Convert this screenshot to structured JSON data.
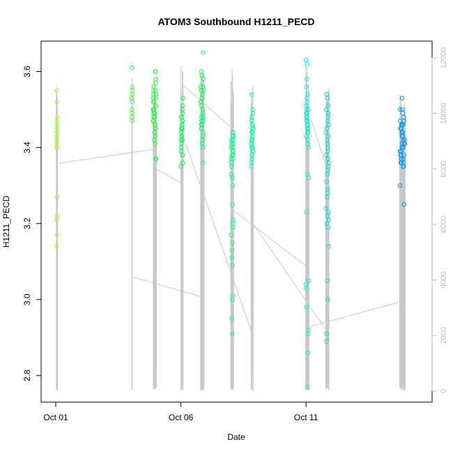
{
  "chart_data": {
    "type": "scatter",
    "title": "ATOM3 Southbound H1211_PECD",
    "xlabel": "Date",
    "ylabel": "H1211_PECD",
    "x_range_days": [
      0.0,
      14.2
    ],
    "x_ticks": [
      {
        "label": "Oct 01",
        "day": 0.0
      },
      {
        "label": "Oct 06",
        "day": 5.0
      },
      {
        "label": "Oct 11",
        "day": 10.0
      }
    ],
    "ylim": [
      2.73,
      3.68
    ],
    "y_ticks": [
      2.8,
      3.0,
      3.2,
      3.4,
      3.6
    ],
    "y_tick_labels": [
      "2.8",
      "3.0",
      "3.2",
      "3.4",
      "3.6"
    ],
    "y2lim": [
      -400,
      12600
    ],
    "y2_ticks": [
      0,
      2000,
      4000,
      6000,
      8000,
      10000,
      12000
    ],
    "y2_tick_labels": [
      "0",
      "2000",
      "4000",
      "6000",
      "8000",
      "10000",
      "12000"
    ],
    "grid": false,
    "legend": "none",
    "point_color_gradient": [
      "#a8ff20",
      "#00ff40",
      "#00ffd0",
      "#0090ff"
    ],
    "altitude_line_color": "#c8c8c8",
    "flights": [
      {
        "day": 0.05,
        "spread": 0.02,
        "altitude_max": 11100,
        "pecd": [
          3.55,
          3.52,
          3.48,
          3.47,
          3.46,
          3.46,
          3.45,
          3.45,
          3.44,
          3.44,
          3.43,
          3.43,
          3.42,
          3.42,
          3.41,
          3.41,
          3.4,
          3.4,
          3.27,
          3.22,
          3.21,
          3.17,
          3.14
        ]
      },
      {
        "day": 3.05,
        "spread": 0.02,
        "altitude_max": 11400,
        "pecd": [
          3.61,
          3.61,
          3.56,
          3.55,
          3.54,
          3.53,
          3.52,
          3.5,
          3.49,
          3.48,
          3.47
        ]
      },
      {
        "day": 3.95,
        "spread": 0.12,
        "altitude_max": 11400,
        "pecd": [
          3.6,
          3.6,
          3.58,
          3.57,
          3.56,
          3.55,
          3.55,
          3.54,
          3.54,
          3.53,
          3.53,
          3.52,
          3.52,
          3.51,
          3.51,
          3.51,
          3.5,
          3.5,
          3.5,
          3.49,
          3.49,
          3.49,
          3.48,
          3.48,
          3.48,
          3.47,
          3.47,
          3.47,
          3.46,
          3.46,
          3.45,
          3.45,
          3.44,
          3.43,
          3.42,
          3.41,
          3.37,
          3.37
        ]
      },
      {
        "day": 5.05,
        "spread": 0.08,
        "altitude_max": 11700,
        "pecd": [
          3.53,
          3.51,
          3.5,
          3.49,
          3.48,
          3.48,
          3.47,
          3.47,
          3.46,
          3.46,
          3.45,
          3.45,
          3.45,
          3.44,
          3.44,
          3.43,
          3.43,
          3.42,
          3.42,
          3.41,
          3.4,
          3.39,
          3.38,
          3.36,
          3.35
        ]
      },
      {
        "day": 5.85,
        "spread": 0.12,
        "altitude_max": 11600,
        "pecd": [
          3.65,
          3.6,
          3.59,
          3.58,
          3.56,
          3.56,
          3.55,
          3.55,
          3.54,
          3.53,
          3.52,
          3.51,
          3.5,
          3.49,
          3.48,
          3.48,
          3.47,
          3.47,
          3.46,
          3.46,
          3.45,
          3.44,
          3.43,
          3.42,
          3.41,
          3.4,
          3.36
        ]
      },
      {
        "day": 7.05,
        "spread": 0.1,
        "altitude_max": 11600,
        "pecd": [
          3.44,
          3.44,
          3.43,
          3.43,
          3.42,
          3.42,
          3.41,
          3.41,
          3.4,
          3.4,
          3.39,
          3.39,
          3.38,
          3.38,
          3.37,
          3.37,
          3.36,
          3.35,
          3.33,
          3.32,
          3.3,
          3.25,
          3.21,
          3.2,
          3.19,
          3.17,
          3.15,
          3.13,
          3.11,
          3.09,
          3.01,
          3.0,
          2.95,
          2.91
        ]
      },
      {
        "day": 7.85,
        "spread": 0.1,
        "altitude_max": 11100,
        "pecd": [
          3.54,
          3.5,
          3.49,
          3.48,
          3.47,
          3.46,
          3.46,
          3.45,
          3.45,
          3.44,
          3.44,
          3.43,
          3.43,
          3.42,
          3.42,
          3.41,
          3.41,
          3.4,
          3.4,
          3.39,
          3.39,
          3.38,
          3.38,
          3.37,
          3.36,
          3.35
        ]
      },
      {
        "day": 10.05,
        "spread": 0.12,
        "altitude_max": 11800,
        "pecd": [
          3.63,
          3.62,
          3.58,
          3.56,
          3.54,
          3.53,
          3.52,
          3.51,
          3.5,
          3.5,
          3.49,
          3.49,
          3.48,
          3.48,
          3.47,
          3.47,
          3.46,
          3.46,
          3.45,
          3.45,
          3.44,
          3.44,
          3.43,
          3.42,
          3.41,
          3.4,
          3.33,
          3.32,
          3.23,
          3.05,
          3.04,
          3.03,
          2.98,
          2.92,
          2.91,
          2.86,
          2.77
        ]
      },
      {
        "day": 10.85,
        "spread": 0.12,
        "altitude_max": 11000,
        "pecd": [
          3.54,
          3.53,
          3.51,
          3.5,
          3.49,
          3.48,
          3.47,
          3.46,
          3.45,
          3.44,
          3.43,
          3.42,
          3.41,
          3.4,
          3.39,
          3.38,
          3.37,
          3.36,
          3.35,
          3.34,
          3.33,
          3.31,
          3.29,
          3.28,
          3.27,
          3.24,
          3.23,
          3.22,
          3.21,
          3.2,
          3.19,
          3.14,
          3.05,
          3.0,
          2.91,
          2.89
        ]
      },
      {
        "day": 13.85,
        "spread": 0.2,
        "altitude_max": 10800,
        "pecd": [
          3.53,
          3.5,
          3.5,
          3.49,
          3.48,
          3.47,
          3.47,
          3.46,
          3.46,
          3.46,
          3.45,
          3.45,
          3.45,
          3.44,
          3.44,
          3.44,
          3.43,
          3.43,
          3.43,
          3.42,
          3.42,
          3.42,
          3.41,
          3.41,
          3.41,
          3.4,
          3.4,
          3.4,
          3.39,
          3.39,
          3.39,
          3.38,
          3.38,
          3.38,
          3.37,
          3.37,
          3.37,
          3.36,
          3.36,
          3.36,
          3.35,
          3.35,
          3.3,
          3.25
        ]
      }
    ],
    "altitude_transits": [
      [
        [
          0.1,
          8200
        ],
        [
          3.9,
          8700
        ]
      ],
      [
        [
          3.1,
          4100
        ],
        [
          5.8,
          3400
        ]
      ],
      [
        [
          4.0,
          8000
        ],
        [
          5.0,
          7500
        ]
      ],
      [
        [
          5.1,
          11000
        ],
        [
          7.0,
          9500
        ]
      ],
      [
        [
          5.2,
          8900
        ],
        [
          7.8,
          2200
        ]
      ],
      [
        [
          7.1,
          6500
        ],
        [
          10.0,
          4500
        ]
      ],
      [
        [
          7.9,
          6000
        ],
        [
          10.8,
          2200
        ]
      ],
      [
        [
          10.1,
          2300
        ],
        [
          13.7,
          3200
        ]
      ],
      [
        [
          10.2,
          9800
        ],
        [
          10.9,
          7800
        ]
      ]
    ]
  }
}
